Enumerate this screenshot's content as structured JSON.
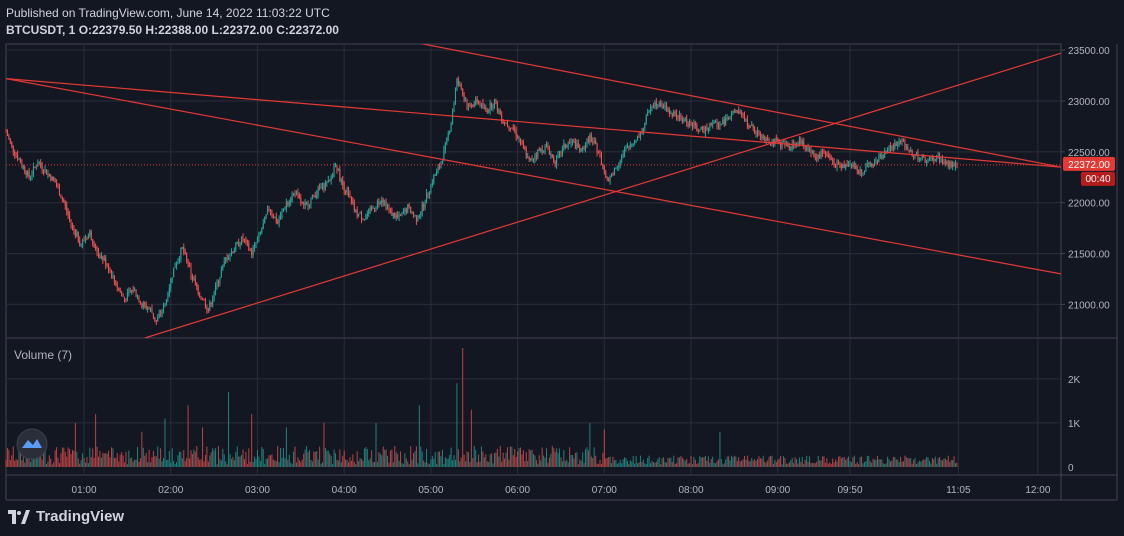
{
  "header": {
    "published": "Published on TradingView.com, June 14, 2022 11:03:22 UTC",
    "symbol": "BTCUSDT, 1",
    "open": "O:22379.50",
    "high": "H:22388.00",
    "low": "L:22372.00",
    "close": "C:22372.00"
  },
  "volume_label": "Volume (7)",
  "current_price_label": "22372.00",
  "countdown_label": "00:40",
  "brand": "TradingView",
  "colors": {
    "background": "#131722",
    "up": "#26a69a",
    "down": "#ef5350",
    "trendline": "#e53935",
    "grid": "#2a2e39",
    "axis_text": "#b2b5be",
    "price_tag": "#e53935"
  },
  "chart_data": [
    {
      "type": "candlestick",
      "title": "BTCUSDT, 1",
      "y_axis_position": "right",
      "ylim": [
        20670,
        23560
      ],
      "y_ticks": [
        21000,
        21500,
        22000,
        22500,
        23000,
        23500
      ],
      "y_tick_labels": [
        "21000.00",
        "21500.00",
        "22000.00",
        "22500.00",
        "23000.00",
        "23500.00"
      ],
      "x_ticks": [
        "01:00",
        "02:00",
        "03:00",
        "04:00",
        "05:00",
        "06:00",
        "07:00",
        "08:00",
        "09:00",
        "09:50",
        "11:05",
        "12:00"
      ],
      "x_tick_times": [
        60,
        120,
        180,
        240,
        300,
        360,
        420,
        480,
        540,
        590,
        665,
        720
      ],
      "xlim_minutes": [
        6,
        736
      ],
      "last_candle_minute": 664,
      "last_price": 22372,
      "price_path": [
        [
          6,
          22700
        ],
        [
          10,
          22550
        ],
        [
          16,
          22400
        ],
        [
          22,
          22250
        ],
        [
          28,
          22400
        ],
        [
          34,
          22300
        ],
        [
          40,
          22200
        ],
        [
          46,
          22000
        ],
        [
          52,
          21750
        ],
        [
          58,
          21600
        ],
        [
          64,
          21700
        ],
        [
          70,
          21500
        ],
        [
          76,
          21400
        ],
        [
          82,
          21200
        ],
        [
          88,
          21050
        ],
        [
          94,
          21150
        ],
        [
          100,
          21000
        ],
        [
          106,
          20950
        ],
        [
          110,
          20830
        ],
        [
          116,
          21000
        ],
        [
          122,
          21350
        ],
        [
          128,
          21550
        ],
        [
          134,
          21300
        ],
        [
          140,
          21100
        ],
        [
          146,
          20950
        ],
        [
          152,
          21200
        ],
        [
          158,
          21450
        ],
        [
          164,
          21550
        ],
        [
          170,
          21650
        ],
        [
          176,
          21500
        ],
        [
          182,
          21700
        ],
        [
          188,
          21950
        ],
        [
          194,
          21800
        ],
        [
          200,
          22000
        ],
        [
          206,
          22100
        ],
        [
          212,
          21950
        ],
        [
          218,
          22050
        ],
        [
          224,
          22150
        ],
        [
          230,
          22200
        ],
        [
          234,
          22400
        ],
        [
          238,
          22200
        ],
        [
          242,
          22100
        ],
        [
          248,
          21900
        ],
        [
          254,
          21850
        ],
        [
          260,
          21950
        ],
        [
          266,
          22050
        ],
        [
          272,
          21900
        ],
        [
          278,
          21850
        ],
        [
          284,
          21950
        ],
        [
          290,
          21850
        ],
        [
          294,
          21950
        ],
        [
          298,
          22100
        ],
        [
          302,
          22250
        ],
        [
          306,
          22350
        ],
        [
          310,
          22550
        ],
        [
          314,
          22800
        ],
        [
          318,
          23200
        ],
        [
          322,
          23050
        ],
        [
          326,
          22950
        ],
        [
          332,
          23000
        ],
        [
          338,
          22900
        ],
        [
          344,
          23000
        ],
        [
          350,
          22800
        ],
        [
          356,
          22750
        ],
        [
          362,
          22600
        ],
        [
          368,
          22400
        ],
        [
          374,
          22500
        ],
        [
          380,
          22550
        ],
        [
          386,
          22400
        ],
        [
          392,
          22550
        ],
        [
          398,
          22600
        ],
        [
          404,
          22500
        ],
        [
          410,
          22650
        ],
        [
          416,
          22500
        ],
        [
          422,
          22200
        ],
        [
          428,
          22350
        ],
        [
          434,
          22500
        ],
        [
          440,
          22600
        ],
        [
          446,
          22700
        ],
        [
          452,
          22950
        ],
        [
          458,
          23000
        ],
        [
          464,
          22900
        ],
        [
          470,
          22850
        ],
        [
          476,
          22800
        ],
        [
          482,
          22750
        ],
        [
          488,
          22700
        ],
        [
          494,
          22800
        ],
        [
          500,
          22750
        ],
        [
          506,
          22850
        ],
        [
          512,
          22900
        ],
        [
          518,
          22800
        ],
        [
          524,
          22700
        ],
        [
          530,
          22650
        ],
        [
          536,
          22600
        ],
        [
          542,
          22580
        ],
        [
          548,
          22550
        ],
        [
          554,
          22600
        ],
        [
          560,
          22550
        ],
        [
          566,
          22450
        ],
        [
          572,
          22500
        ],
        [
          578,
          22400
        ],
        [
          584,
          22350
        ],
        [
          590,
          22400
        ],
        [
          596,
          22300
        ],
        [
          602,
          22350
        ],
        [
          608,
          22400
        ],
        [
          614,
          22500
        ],
        [
          620,
          22550
        ],
        [
          626,
          22600
        ],
        [
          632,
          22500
        ],
        [
          638,
          22450
        ],
        [
          644,
          22400
        ],
        [
          650,
          22450
        ],
        [
          656,
          22380
        ],
        [
          664,
          22372
        ]
      ],
      "trendlines": [
        {
          "name": "upper-descending",
          "points": [
            [
              6,
              23220
            ],
            [
              736,
              22350
            ]
          ]
        },
        {
          "name": "lower-descending",
          "points": [
            [
              6,
              23220
            ],
            [
              736,
              21300
            ]
          ]
        },
        {
          "name": "ascending",
          "points": [
            [
              102,
              20670
            ],
            [
              736,
              23470
            ]
          ]
        },
        {
          "name": "descending-resistance",
          "points": [
            [
              280,
              23600
            ],
            [
              736,
              22350
            ]
          ]
        }
      ]
    },
    {
      "type": "bar",
      "title": "Volume (7)",
      "ylim": [
        0,
        2700
      ],
      "y_ticks": [
        0,
        1000,
        2000
      ],
      "y_tick_labels": [
        "0",
        "1K",
        "2K"
      ],
      "spikes": [
        [
          54,
          1000
        ],
        [
          68,
          1200
        ],
        [
          100,
          800
        ],
        [
          116,
          1100
        ],
        [
          132,
          1400
        ],
        [
          142,
          900
        ],
        [
          160,
          1700
        ],
        [
          176,
          1200
        ],
        [
          200,
          900
        ],
        [
          226,
          1000
        ],
        [
          262,
          1000
        ],
        [
          292,
          1400
        ],
        [
          318,
          1900
        ],
        [
          322,
          2700
        ],
        [
          328,
          1300
        ],
        [
          410,
          1000
        ],
        [
          420,
          850
        ],
        [
          500,
          800
        ]
      ]
    }
  ]
}
